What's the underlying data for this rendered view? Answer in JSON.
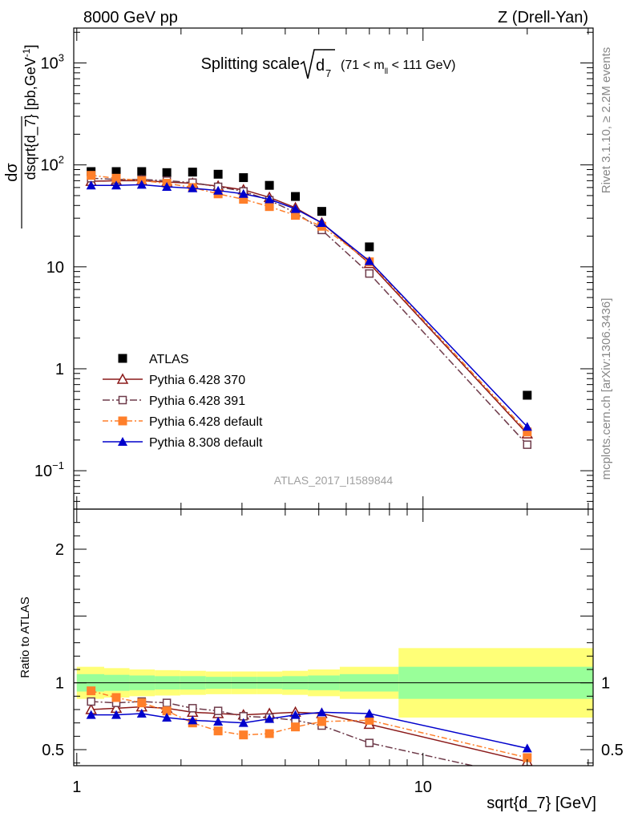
{
  "header": {
    "left": "8000 GeV pp",
    "right": "Z (Drell-Yan)"
  },
  "side": {
    "rivet": "Rivet 3.1.10, ≥ 2.2M events",
    "mcplots": "mcplots.cern.ch [arXiv:1306.3436]"
  },
  "chart_data": {
    "type": "scatter",
    "title_main": "Splitting scale",
    "title_var": "d",
    "title_var_sub": "7",
    "title_range_a": "(71 < m",
    "title_range_sub": "ll",
    "title_range_b": " < 111 GeV)",
    "analysis_id": "ATLAS_2017_I1589844",
    "xlabel": "sqrt{d_7} [GeV]",
    "ylabel_top": "dσ",
    "ylabel_bottom": "dsqrt{d_7} [pb,GeV",
    "ylabel_bottom_sup": "-1",
    "ylabel_bottom_end": "]",
    "ratio_ylabel": "Ratio to ATLAS",
    "x_scale": "log",
    "xlim": [
      0.98,
      31
    ],
    "x_ticks": [
      {
        "v": 1,
        "label": "1"
      },
      {
        "v": 10,
        "label": "10"
      }
    ],
    "main": {
      "y_scale": "log",
      "ylim": [
        0.042,
        2200
      ],
      "y_ticks": [
        {
          "v": 1000,
          "base": "10",
          "exp": "3"
        },
        {
          "v": 100,
          "base": "10",
          "exp": "2"
        },
        {
          "v": 10,
          "base": "10",
          "exp": ""
        },
        {
          "v": 1,
          "base": "1",
          "exp": ""
        },
        {
          "v": 0.1,
          "base": "10",
          "exp": "−1"
        }
      ]
    },
    "ratio": {
      "y_scale": "linear",
      "ylim": [
        0.38,
        2.3
      ],
      "y_ticks": [
        {
          "v": 0.5,
          "label": "0.5"
        },
        {
          "v": 1,
          "label": "1"
        },
        {
          "v": 2,
          "label": "2"
        }
      ]
    },
    "x": [
      1.1,
      1.3,
      1.54,
      1.82,
      2.16,
      2.56,
      3.03,
      3.6,
      4.28,
      5.1,
      7.0,
      20.0
    ],
    "bins": [
      [
        1.0,
        1.2
      ],
      [
        1.2,
        1.42
      ],
      [
        1.42,
        1.68
      ],
      [
        1.68,
        1.99
      ],
      [
        1.99,
        2.36
      ],
      [
        2.36,
        2.79
      ],
      [
        2.79,
        3.31
      ],
      [
        3.31,
        3.92
      ],
      [
        3.92,
        4.65
      ],
      [
        4.65,
        5.75
      ],
      [
        5.75,
        8.5
      ],
      [
        8.5,
        31
      ]
    ],
    "band_green": [
      0.065,
      0.06,
      0.055,
      0.05,
      0.05,
      0.045,
      0.045,
      0.045,
      0.05,
      0.055,
      0.065,
      0.12
    ],
    "band_yellow": [
      0.12,
      0.11,
      0.1,
      0.095,
      0.09,
      0.085,
      0.085,
      0.085,
      0.09,
      0.1,
      0.12,
      0.26
    ],
    "series": [
      {
        "name": "ATLAS",
        "color": "#000000",
        "marker": "square-filled",
        "dash": "",
        "line": false,
        "values": [
          86,
          86,
          86,
          84,
          85,
          81,
          75,
          63,
          49,
          35,
          15.7,
          0.55
        ],
        "ratio": [
          1,
          1,
          1,
          1,
          1,
          1,
          1,
          1,
          1,
          1,
          1,
          1
        ]
      },
      {
        "name": "Pythia 6.428 370",
        "color": "#8b1a1a",
        "marker": "triangle-open",
        "dash": "",
        "line": true,
        "values": [
          69,
          70,
          70,
          68,
          66,
          62,
          57,
          48,
          38,
          27,
          10.8,
          0.23
        ],
        "ratio": [
          0.8,
          0.81,
          0.82,
          0.81,
          0.78,
          0.77,
          0.76,
          0.77,
          0.78,
          0.77,
          0.69,
          0.41
        ]
      },
      {
        "name": "Pythia 6.428 391",
        "color": "#6e3b4a",
        "marker": "square-open",
        "dash": "9,3,2,3",
        "line": true,
        "values": [
          74,
          72,
          72,
          70,
          67,
          61,
          55,
          45,
          34,
          23,
          8.6,
          0.18
        ],
        "ratio": [
          0.86,
          0.85,
          0.86,
          0.85,
          0.81,
          0.79,
          0.75,
          0.74,
          0.72,
          0.68,
          0.55,
          0.29
        ]
      },
      {
        "name": "Pythia 6.428 default",
        "color": "#ff7f2a",
        "marker": "square-filled",
        "dash": "7,3,2,3",
        "line": true,
        "values": [
          79,
          74,
          70,
          66,
          60,
          52,
          46,
          39,
          32,
          25,
          11.2,
          0.24
        ],
        "ratio": [
          0.94,
          0.89,
          0.85,
          0.79,
          0.7,
          0.64,
          0.61,
          0.62,
          0.67,
          0.71,
          0.72,
          0.44
        ]
      },
      {
        "name": "Pythia 8.308 default",
        "color": "#0000cc",
        "marker": "triangle-filled",
        "dash": "",
        "line": true,
        "values": [
          63,
          63,
          64,
          61,
          59,
          56,
          52,
          46,
          37,
          27,
          11.4,
          0.27
        ],
        "ratio": [
          0.76,
          0.76,
          0.77,
          0.74,
          0.72,
          0.71,
          0.7,
          0.73,
          0.76,
          0.78,
          0.77,
          0.51
        ]
      }
    ]
  }
}
